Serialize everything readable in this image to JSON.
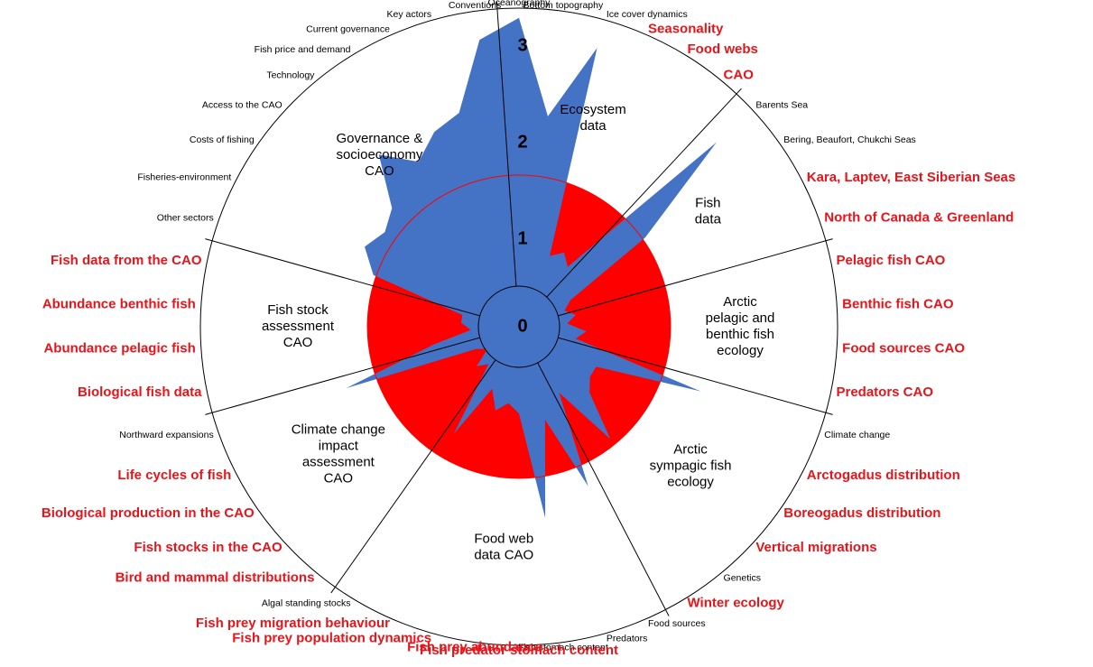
{
  "chart_data": {
    "type": "radar",
    "rlim": [
      0,
      3.3
    ],
    "rticks": [
      0,
      1,
      2,
      3
    ],
    "threshold": 1.57,
    "color": "#4472c4",
    "threshold_color": "#ff0000",
    "sectors": [
      {
        "name": [
          "Ecosystem",
          "data"
        ],
        "categories": [
          "Oceanography",
          "Bottom topography",
          "Ice cover dynamics",
          "Seasonality",
          "Food webs",
          "CAO"
        ],
        "values": [
          3.2,
          2.2,
          3.0,
          0.8,
          0.9,
          0.8
        ],
        "label_colors": [
          "#000000",
          "#000000",
          "#000000",
          "#e8141a",
          "#e8141a",
          "#e8141a"
        ]
      },
      {
        "name": [
          "Fish",
          "data"
        ],
        "categories": [
          "Barents Sea",
          "Bering, Beaufort, Chukchi Seas",
          "Kara, Laptev, East Siberian Seas",
          "North of Canada & Greenland"
        ],
        "values": [
          2.8,
          1.6,
          0.6,
          0.5
        ],
        "label_colors": [
          "#000000",
          "#000000",
          "#e8141a",
          "#e8141a"
        ]
      },
      {
        "name": [
          "Arctic",
          "pelagic and",
          "benthic fish",
          "ecology"
        ],
        "categories": [
          "Pelagic fish CAO",
          "Benthic fish CAO",
          "Food sources CAO",
          "Predators CAO"
        ],
        "values": [
          0.6,
          0.5,
          0.7,
          0.6
        ],
        "label_colors": [
          "#e8141a",
          "#e8141a",
          "#e8141a",
          "#e8141a"
        ]
      },
      {
        "name": [
          "Arctic",
          "sympagic fish",
          "ecology"
        ],
        "categories": [
          "Climate change",
          "Arctogadus distribution",
          "Boreogadus distribution",
          "Vertical migrations",
          "Genetics",
          "Winter ecology"
        ],
        "values": [
          2.0,
          0.9,
          0.9,
          1.0,
          1.5,
          0.8
        ],
        "label_colors": [
          "#000000",
          "#e8141a",
          "#e8141a",
          "#e8141a",
          "#000000",
          "#e8141a"
        ]
      },
      {
        "name": [
          "Food web",
          "data CAO"
        ],
        "categories": [
          "Food sources",
          "Predators",
          "Fish stomach content",
          "Fish predator stomach content",
          "Fish prey abundance",
          "Fish prey population dynamics",
          "Fish prey migration behaviour",
          "Algal standing stocks"
        ],
        "values": [
          1.8,
          1.0,
          2.0,
          0.9,
          0.8,
          0.9,
          0.7,
          1.3
        ],
        "label_colors": [
          "#000000",
          "#000000",
          "#000000",
          "#e8141a",
          "#e8141a",
          "#e8141a",
          "#e8141a",
          "#000000"
        ]
      },
      {
        "name": [
          "Climate change",
          "impact",
          "assessment",
          "CAO"
        ],
        "categories": [
          "Bird and mammal distributions",
          "Fish stocks in the CAO",
          "Biological production in the CAO",
          "Life cycles of fish",
          "Northward expansions"
        ],
        "values": [
          0.5,
          0.6,
          0.4,
          0.5,
          1.9
        ],
        "label_colors": [
          "#e8141a",
          "#e8141a",
          "#e8141a",
          "#e8141a",
          "#000000"
        ]
      },
      {
        "name": [
          "Fish stock",
          "assessment",
          "CAO"
        ],
        "categories": [
          "Biological fish data",
          "Abundance pelagic fish",
          "Abundance benthic fish",
          "Fish data from the CAO"
        ],
        "values": [
          0.9,
          0.5,
          0.6,
          0.6
        ],
        "label_colors": [
          "#e8141a",
          "#e8141a",
          "#e8141a",
          "#e8141a"
        ]
      },
      {
        "name": [
          "Governance &",
          "socioeconomy",
          "CAO"
        ],
        "categories": [
          "Other sectors",
          "Fisheries-environment",
          "Costs of fishing",
          "Access to the CAO",
          "Technology",
          "Fish price and demand",
          "Current governance",
          "Key actors",
          "Conventions"
        ],
        "values": [
          1.6,
          1.8,
          1.7,
          1.8,
          2.3,
          2.0,
          2.2,
          2.3,
          3.0
        ],
        "label_colors": [
          "#000000",
          "#000000",
          "#000000",
          "#000000",
          "#000000",
          "#000000",
          "#000000",
          "#000000",
          "#000000"
        ]
      }
    ]
  }
}
